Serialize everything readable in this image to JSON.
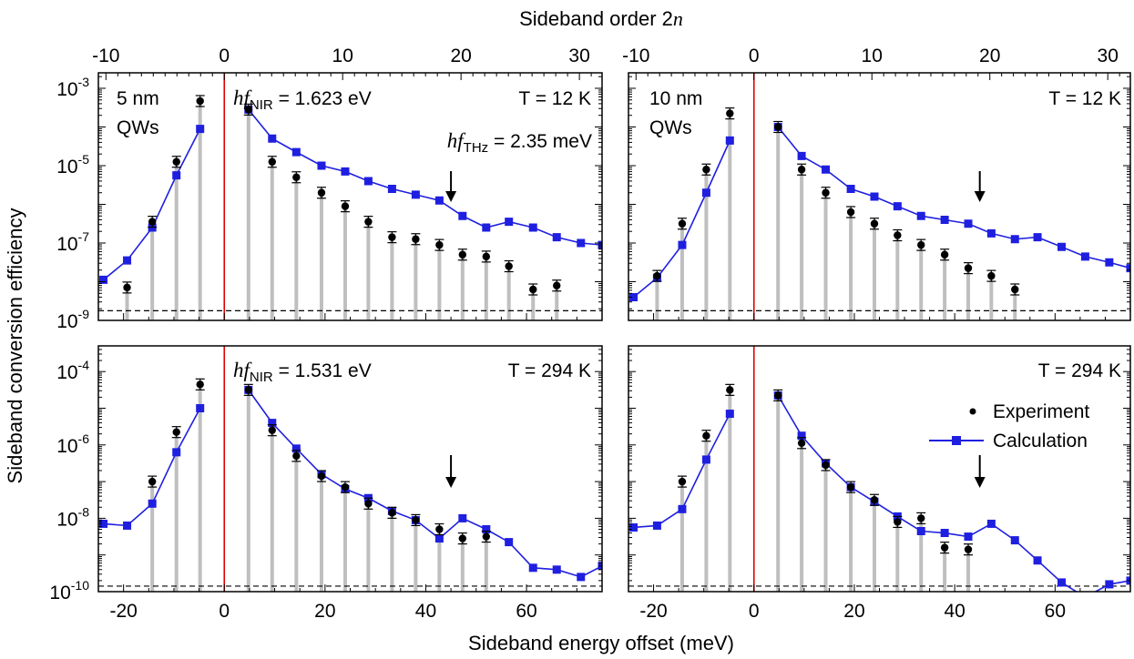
{
  "figure": {
    "top_axis_label": "Sideband order 2",
    "top_axis_label_italic": "n",
    "bottom_axis_label": "Sideband energy offset (meV)",
    "y_axis_label": "Sideband conversion efficiency",
    "colors": {
      "experiment": "#000000",
      "calculation": "#1f1fe0",
      "stems": "#bfbfbf",
      "zero_line": "#e00000",
      "noise_floor": "#000000"
    }
  },
  "legend": {
    "experiment": "Experiment",
    "calculation": "Calculation",
    "placement": "bottom-right panel, right"
  },
  "chart_data": [
    {
      "type": "scatter",
      "panel": "top-left",
      "annotations": {
        "well": "5 nm",
        "well_type": "QWs",
        "temperature": "T = 12 K",
        "nir_sym": "hf",
        "nir_sub": "NIR",
        "nir_val": " = 1.623 eV",
        "thz_sym": "hf",
        "thz_sub": "THz",
        "thz_val": " = 2.35 meV"
      },
      "xlim": [
        -25,
        75
      ],
      "ylim_exp": [
        -9,
        -2.6
      ],
      "x_ticks": [
        -20,
        0,
        20,
        40,
        60
      ],
      "x_tick_labels": [
        "-20",
        "0",
        "20",
        "40",
        "60"
      ],
      "top_ticks": [
        -10,
        0,
        10,
        20,
        30
      ],
      "top_tick_labels": [
        "-10",
        "0",
        "10",
        "20",
        "30"
      ],
      "y_tick_exps": [
        -9,
        -7,
        -5,
        -3
      ],
      "y_tick_bases": [
        "10",
        "10",
        "10",
        "10"
      ],
      "y_tick_exponents": [
        "-9",
        "-7",
        "-5",
        "-3"
      ],
      "noise_floor_exp": -8.75,
      "arrow_x": 45,
      "experiment": {
        "name": "Experiment",
        "x": [
          -19.3,
          -14.3,
          -9.5,
          -4.8,
          4.8,
          9.5,
          14.3,
          19.3,
          24.0,
          28.6,
          33.3,
          38.0,
          42.7,
          47.3,
          52.0,
          56.5,
          61.3,
          66.0
        ],
        "y_exp": [
          -8.15,
          -6.45,
          -4.9,
          -3.33,
          -3.55,
          -4.9,
          -5.3,
          -5.7,
          -6.05,
          -6.45,
          -6.85,
          -6.9,
          -7.05,
          -7.3,
          -7.35,
          -7.6,
          -8.2,
          -8.1
        ]
      },
      "calculation": {
        "name": "Calculation",
        "x": [
          -24.0,
          -19.3,
          -14.3,
          -9.5,
          -4.8,
          4.8,
          9.5,
          14.3,
          19.3,
          24.0,
          28.6,
          33.3,
          38.0,
          42.7,
          47.3,
          52.0,
          56.5,
          61.3,
          66.0,
          70.8,
          75.0
        ],
        "y_exp": [
          -7.95,
          -7.45,
          -6.6,
          -5.25,
          -4.05,
          -3.55,
          -4.3,
          -4.65,
          -5.0,
          -5.15,
          -5.4,
          -5.6,
          -5.75,
          -5.9,
          -6.3,
          -6.6,
          -6.45,
          -6.6,
          -6.85,
          -7.0,
          -7.05
        ]
      }
    },
    {
      "type": "scatter",
      "panel": "top-right",
      "annotations": {
        "well": "10 nm",
        "well_type": "QWs",
        "temperature": "T = 12 K"
      },
      "xlim": [
        -25,
        75
      ],
      "ylim_exp": [
        -9,
        -2.6
      ],
      "x_ticks": [
        -20,
        0,
        20,
        40,
        60
      ],
      "x_tick_labels": [
        "-20",
        "0",
        "20",
        "40",
        "60"
      ],
      "top_ticks": [
        -10,
        0,
        10,
        20,
        30
      ],
      "top_tick_labels": [
        "-10",
        "0",
        "10",
        "20",
        "30"
      ],
      "noise_floor_exp": -8.75,
      "arrow_x": 45,
      "experiment": {
        "name": "Experiment",
        "x": [
          -19.3,
          -14.3,
          -9.5,
          -4.8,
          4.8,
          9.5,
          14.3,
          19.3,
          24.0,
          28.6,
          33.3,
          38.0,
          42.7,
          47.3,
          52.0
        ],
        "y_exp": [
          -7.85,
          -6.5,
          -5.1,
          -3.65,
          -4.0,
          -5.1,
          -5.7,
          -6.2,
          -6.5,
          -6.8,
          -7.05,
          -7.3,
          -7.65,
          -7.85,
          -8.2
        ]
      },
      "calculation": {
        "name": "Calculation",
        "x": [
          -24.0,
          -19.3,
          -14.3,
          -9.5,
          -4.8,
          4.8,
          9.5,
          14.3,
          19.3,
          24.0,
          28.6,
          33.3,
          38.0,
          42.7,
          47.3,
          52.0,
          56.5,
          61.3,
          66.0,
          70.8,
          75.0
        ],
        "y_exp": [
          -8.4,
          -7.9,
          -7.05,
          -5.7,
          -4.35,
          -4.0,
          -4.75,
          -5.1,
          -5.6,
          -5.8,
          -6.05,
          -6.3,
          -6.4,
          -6.5,
          -6.75,
          -6.9,
          -6.85,
          -7.1,
          -7.35,
          -7.5,
          -7.65
        ]
      }
    },
    {
      "type": "scatter",
      "panel": "bottom-left",
      "annotations": {
        "temperature": "T = 294 K",
        "nir_sym": "hf",
        "nir_sub": "NIR",
        "nir_val": " = 1.531 eV"
      },
      "xlim": [
        -25,
        75
      ],
      "ylim_exp": [
        -10,
        -3.3
      ],
      "x_ticks": [
        -20,
        0,
        20,
        40,
        60
      ],
      "x_tick_labels": [
        "-20",
        "0",
        "20",
        "40",
        "60"
      ],
      "y_tick_exps": [
        -10,
        -8,
        -6,
        -4
      ],
      "y_tick_bases": [
        "10",
        "10",
        "10",
        "10"
      ],
      "y_tick_exponents": [
        "-10",
        "-8",
        "-6",
        "-4"
      ],
      "noise_floor_exp": -9.85,
      "arrow_x": 45,
      "experiment": {
        "name": "Experiment",
        "x": [
          -14.3,
          -9.5,
          -4.8,
          4.8,
          9.5,
          14.3,
          19.3,
          24.0,
          28.6,
          33.3,
          38.0,
          42.7,
          47.3,
          52.0
        ],
        "y_exp": [
          -7.0,
          -5.65,
          -4.35,
          -4.5,
          -5.6,
          -6.3,
          -6.85,
          -7.15,
          -7.6,
          -7.85,
          -8.05,
          -8.3,
          -8.55,
          -8.5
        ]
      },
      "calculation": {
        "name": "Calculation",
        "x": [
          -24.0,
          -19.3,
          -14.3,
          -9.5,
          -4.8,
          4.8,
          9.5,
          14.3,
          19.3,
          24.0,
          28.6,
          33.3,
          38.0,
          42.7,
          47.3,
          52.0,
          56.5,
          61.3,
          66.0,
          70.8,
          75.0
        ],
        "y_exp": [
          -8.15,
          -8.2,
          -7.6,
          -6.2,
          -5.0,
          -4.5,
          -5.4,
          -6.1,
          -6.8,
          -7.2,
          -7.45,
          -7.8,
          -8.05,
          -8.55,
          -8.0,
          -8.3,
          -8.65,
          -9.35,
          -9.4,
          -9.6,
          -9.3
        ]
      }
    },
    {
      "type": "scatter",
      "panel": "bottom-right",
      "annotations": {
        "temperature": "T = 294 K"
      },
      "xlim": [
        -25,
        75
      ],
      "ylim_exp": [
        -10,
        -3.3
      ],
      "x_ticks": [
        -20,
        0,
        20,
        40,
        60
      ],
      "x_tick_labels": [
        "-20",
        "0",
        "20",
        "40",
        "60"
      ],
      "noise_floor_exp": -9.85,
      "arrow_x": 45,
      "experiment": {
        "name": "Experiment",
        "x": [
          -14.3,
          -9.5,
          -4.8,
          4.8,
          9.5,
          14.3,
          19.3,
          24.0,
          28.6,
          33.3,
          38.0,
          42.7
        ],
        "y_exp": [
          -7.0,
          -5.75,
          -4.5,
          -4.65,
          -5.95,
          -6.55,
          -7.15,
          -7.5,
          -8.1,
          -8.0,
          -8.8,
          -8.85
        ]
      },
      "calculation": {
        "name": "Calculation",
        "x": [
          -24.0,
          -19.3,
          -14.3,
          -9.5,
          -4.8,
          4.8,
          9.5,
          14.3,
          19.3,
          24.0,
          28.6,
          33.3,
          38.0,
          42.7,
          47.3,
          52.0,
          56.5,
          61.3,
          66.0,
          70.8,
          75.0
        ],
        "y_exp": [
          -8.25,
          -8.2,
          -7.75,
          -6.4,
          -5.15,
          -4.65,
          -5.75,
          -6.5,
          -7.15,
          -7.55,
          -7.95,
          -8.35,
          -8.4,
          -8.5,
          -8.15,
          -8.6,
          -9.15,
          -9.75,
          -10.15,
          -9.8,
          -9.7
        ]
      }
    }
  ]
}
